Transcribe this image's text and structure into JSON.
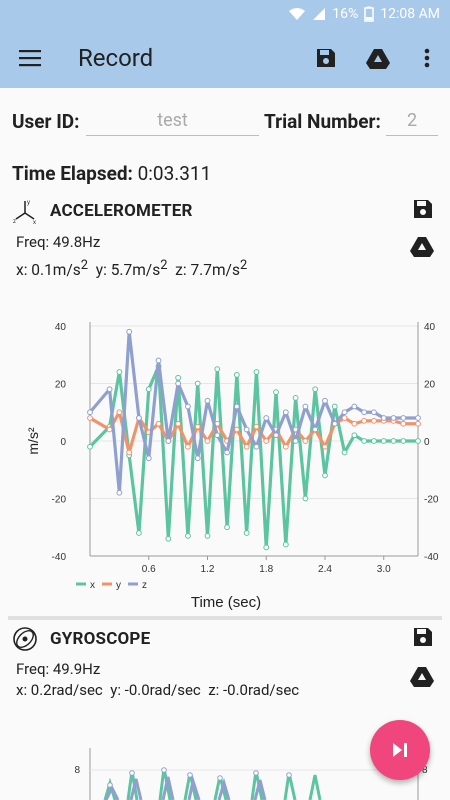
{
  "status": {
    "battery": "16%",
    "time": "12:08 AM"
  },
  "appbar": {
    "title": "Record"
  },
  "form": {
    "user_id_label": "User ID:",
    "user_id_value": "test",
    "trial_label": "Trial Number:",
    "trial_value": "2",
    "elapsed_label": "Time Elapsed:",
    "elapsed_value": "0:03.311"
  },
  "accelerometer": {
    "title": "ACCELEROMETER",
    "freq": "Freq: 49.8Hz",
    "x": "x: 0.1m/s",
    "y": "y: 5.7m/s",
    "z": "z: 7.7m/s",
    "exp": "2",
    "ylabel": "m/s",
    "ylabel_exp": "2",
    "xlabel": "Time (sec)",
    "legend": [
      "x",
      "y",
      "z"
    ]
  },
  "gyroscope": {
    "title": "GYROSCOPE",
    "freq": "Freq: 49.9Hz",
    "x": "x: 0.2rad/sec",
    "y": "y: -0.0rad/sec",
    "z": "z: -0.0rad/sec"
  },
  "colors": {
    "x": "#5cc4a0",
    "y": "#f0926a",
    "z": "#8fa0cf"
  },
  "chart_data": [
    {
      "type": "line",
      "title": "",
      "xlabel": "Time (sec)",
      "ylabel": "m/s²",
      "xlim": [
        0,
        3.35
      ],
      "ylim": [
        -40,
        40
      ],
      "x_ticks": [
        0.6,
        1.2,
        1.8,
        2.4,
        3.0
      ],
      "y_ticks": [
        40,
        20,
        0,
        -20,
        -40
      ],
      "series": [
        {
          "name": "x",
          "x": [
            0,
            0.2,
            0.3,
            0.4,
            0.5,
            0.6,
            0.7,
            0.8,
            0.9,
            1.0,
            1.1,
            1.2,
            1.3,
            1.4,
            1.5,
            1.6,
            1.7,
            1.8,
            1.9,
            2.0,
            2.1,
            2.2,
            2.3,
            2.4,
            2.5,
            2.6,
            2.7,
            2.8,
            2.9,
            3.0,
            3.1,
            3.2,
            3.35
          ],
          "values": [
            -2,
            5,
            24,
            -5,
            -32,
            18,
            26,
            -34,
            22,
            -33,
            20,
            -33,
            25,
            -30,
            23,
            -32,
            24,
            -37,
            17,
            -36,
            15,
            -20,
            18,
            -12,
            12,
            -4,
            2,
            0,
            0,
            0,
            0,
            0,
            0
          ]
        },
        {
          "name": "y",
          "x": [
            0,
            0.2,
            0.3,
            0.4,
            0.5,
            0.6,
            0.7,
            0.8,
            0.9,
            1.0,
            1.1,
            1.2,
            1.3,
            1.4,
            1.5,
            1.6,
            1.7,
            1.8,
            1.9,
            2.0,
            2.1,
            2.2,
            2.3,
            2.4,
            2.5,
            2.6,
            2.7,
            2.8,
            2.9,
            3.0,
            3.1,
            3.2,
            3.35
          ],
          "values": [
            8,
            4,
            10,
            -4,
            8,
            3,
            6,
            0,
            6,
            -2,
            5,
            0,
            6,
            0,
            4,
            -2,
            5,
            0,
            4,
            -2,
            4,
            0,
            4,
            -2,
            6,
            8,
            6,
            7,
            7,
            7,
            7,
            6,
            6
          ]
        },
        {
          "name": "z",
          "x": [
            0,
            0.2,
            0.3,
            0.4,
            0.5,
            0.6,
            0.7,
            0.8,
            0.9,
            1.0,
            1.1,
            1.2,
            1.3,
            1.4,
            1.5,
            1.6,
            1.7,
            1.8,
            1.9,
            2.0,
            2.1,
            2.2,
            2.3,
            2.4,
            2.5,
            2.6,
            2.7,
            2.8,
            2.9,
            3.0,
            3.1,
            3.2,
            3.35
          ],
          "values": [
            10,
            18,
            -18,
            38,
            8,
            -6,
            28,
            0,
            20,
            12,
            -6,
            14,
            2,
            -4,
            12,
            4,
            -2,
            8,
            2,
            10,
            0,
            12,
            4,
            14,
            6,
            10,
            12,
            10,
            10,
            8,
            8,
            8,
            8
          ]
        }
      ]
    }
  ]
}
